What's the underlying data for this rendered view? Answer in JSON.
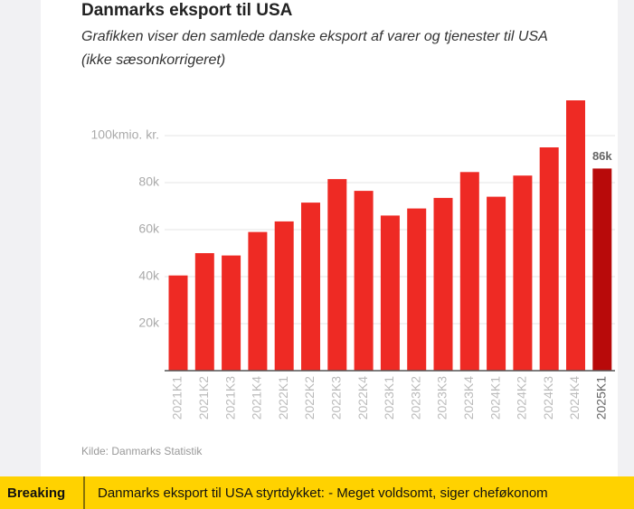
{
  "chart_data": {
    "type": "bar",
    "title": "Danmarks eksport til USA",
    "subtitle": [
      "Grafikken viser den samlede danske eksport af varer og tjenester til USA",
      "(ikke sæsonkorrigeret)"
    ],
    "categories": [
      "2021K1",
      "2021K2",
      "2021K3",
      "2021K4",
      "2022K1",
      "2022K2",
      "2022K3",
      "2022K4",
      "2023K1",
      "2023K2",
      "2023K3",
      "2023K4",
      "2024K1",
      "2024K2",
      "2024K3",
      "2024K4",
      "2025K1"
    ],
    "values": [
      40500,
      50000,
      49000,
      59000,
      63500,
      71500,
      81500,
      76500,
      66000,
      69000,
      73500,
      84500,
      74000,
      83000,
      95000,
      115000,
      86000
    ],
    "value_labels": [
      null,
      null,
      null,
      null,
      null,
      null,
      null,
      null,
      null,
      null,
      null,
      null,
      null,
      null,
      null,
      null,
      "86k"
    ],
    "colors": [
      "#ee2a24",
      "#ee2a24",
      "#ee2a24",
      "#ee2a24",
      "#ee2a24",
      "#ee2a24",
      "#ee2a24",
      "#ee2a24",
      "#ee2a24",
      "#ee2a24",
      "#ee2a24",
      "#ee2a24",
      "#ee2a24",
      "#ee2a24",
      "#ee2a24",
      "#ee2a24",
      "#b80a0a"
    ],
    "ylim": [
      0,
      120000
    ],
    "yticks": [
      {
        "value": 20000,
        "label": "20k"
      },
      {
        "value": 40000,
        "label": "40k"
      },
      {
        "value": 60000,
        "label": "60k"
      },
      {
        "value": 80000,
        "label": "80k"
      },
      {
        "value": 100000,
        "label": "100kmio. kr."
      }
    ],
    "grid": true,
    "source": "Kilde: Danmarks Statistik"
  },
  "breaking": {
    "label": "Breaking",
    "headline": "Danmarks eksport til USA styrtdykket: - Meget voldsomt, siger cheføkonom"
  }
}
